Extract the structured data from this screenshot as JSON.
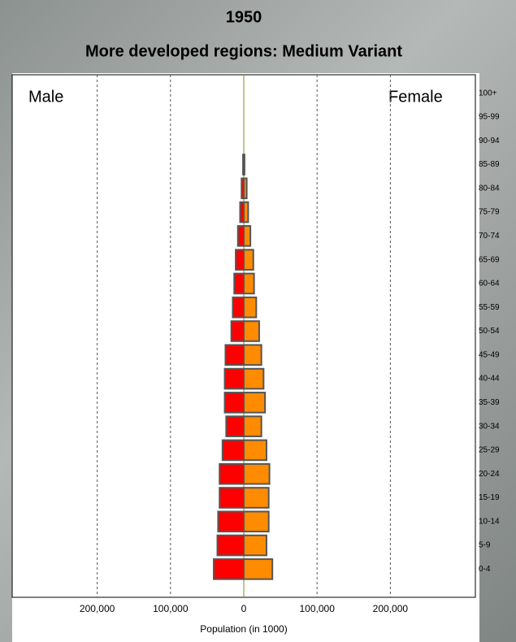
{
  "chart_data": {
    "type": "pyramid",
    "title": "1950",
    "subtitle": "More developed regions: Medium Variant",
    "x_label": "Population (in 1000)",
    "left_label": "Male",
    "right_label": "Female",
    "categories": [
      "0-4",
      "5-9",
      "10-14",
      "15-19",
      "20-24",
      "25-29",
      "30-34",
      "35-39",
      "40-44",
      "45-49",
      "50-54",
      "55-59",
      "60-64",
      "65-69",
      "70-74",
      "75-79",
      "80-84",
      "85-89",
      "90-94",
      "95-99",
      "100+"
    ],
    "series": [
      {
        "name": "Male",
        "color": "#ff0000",
        "values": [
          41000,
          36000,
          35000,
          33000,
          33000,
          29000,
          24000,
          26000,
          26000,
          25000,
          17000,
          15000,
          13000,
          11000,
          8000,
          5000,
          3000,
          1000,
          0,
          0,
          0
        ]
      },
      {
        "name": "Female",
        "color": "#ff8c00",
        "values": [
          39000,
          31000,
          34000,
          34000,
          35000,
          31000,
          24000,
          29000,
          27000,
          24000,
          21000,
          17000,
          14000,
          13000,
          9000,
          6000,
          4000,
          1000,
          0,
          0,
          0
        ]
      }
    ],
    "xlim": [
      -316000,
      316000
    ],
    "xticks": [
      {
        "value": -200000,
        "label": "200,000"
      },
      {
        "value": -100000,
        "label": "100,000"
      },
      0,
      {
        "value": 100000,
        "label": "100,000"
      },
      {
        "value": 200000,
        "label": "200,000"
      }
    ],
    "grid": true
  }
}
